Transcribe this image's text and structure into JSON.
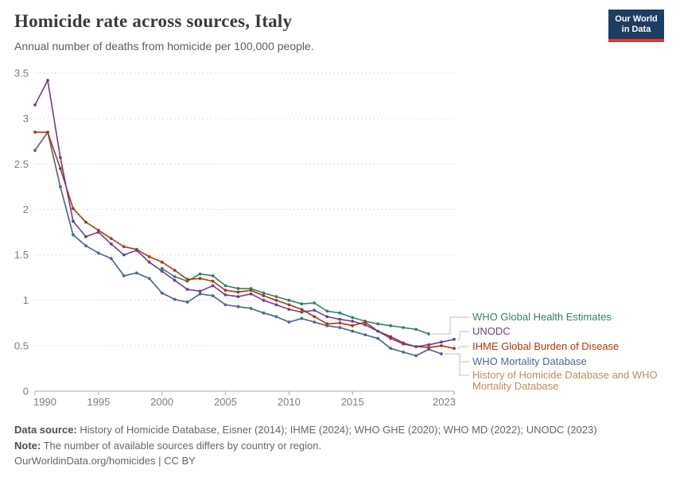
{
  "header": {
    "title": "Homicide rate across sources, Italy",
    "subtitle": "Annual number of deaths from homicide per 100,000 people.",
    "logo": {
      "line1": "Our World",
      "line2": "in Data",
      "bg_color": "#1d3d63",
      "accent_color": "#e8362d"
    }
  },
  "chart_data": {
    "type": "line",
    "title": "Homicide rate across sources, Italy",
    "subtitle": "Annual number of deaths from homicide per 100,000 people.",
    "xlabel": "",
    "ylabel": "",
    "xlim": [
      1990,
      2023
    ],
    "ylim": [
      0,
      3.5
    ],
    "x_ticks": [
      1990,
      1995,
      2000,
      2005,
      2010,
      2015,
      2023
    ],
    "y_ticks": [
      0,
      0.5,
      1,
      1.5,
      2,
      2.5,
      3,
      3.5
    ],
    "grid": "horizontal-dashed",
    "legend_position": "right",
    "series": [
      {
        "name": "WHO Global Health Estimates",
        "color": "#2C8465",
        "start_year": 2000,
        "values": [
          1.35,
          1.26,
          1.21,
          1.29,
          1.27,
          1.16,
          1.13,
          1.13,
          1.08,
          1.04,
          1.0,
          0.96,
          0.97,
          0.88,
          0.86,
          0.81,
          0.77,
          0.74,
          0.72,
          0.7,
          0.68,
          0.63
        ]
      },
      {
        "name": "UNODC",
        "color": "#6D3E91",
        "start_year": 1990,
        "values": [
          3.15,
          3.42,
          2.57,
          1.87,
          1.7,
          1.75,
          1.62,
          1.5,
          1.55,
          1.42,
          1.32,
          1.22,
          1.12,
          1.1,
          1.16,
          1.06,
          1.04,
          1.07,
          1.0,
          0.95,
          0.9,
          0.87,
          0.89,
          0.82,
          0.79,
          0.77,
          0.73,
          0.66,
          0.6,
          0.53,
          0.49,
          0.51,
          0.54,
          0.57
        ]
      },
      {
        "name": "IHME Global Burden of Disease",
        "color": "#B13507",
        "start_year": 1990,
        "values": [
          2.85,
          2.85,
          2.45,
          2.01,
          1.86,
          1.77,
          1.68,
          1.59,
          1.56,
          1.48,
          1.42,
          1.33,
          1.23,
          1.24,
          1.21,
          1.11,
          1.09,
          1.11,
          1.05,
          1.0,
          0.95,
          0.9,
          0.82,
          0.74,
          0.75,
          0.72,
          0.76,
          0.66,
          0.58,
          0.52,
          0.49,
          0.48,
          0.5,
          0.47
        ]
      },
      {
        "name": "WHO Mortality Database",
        "color": "#4C6A9C",
        "start_year": 1990,
        "values": [
          2.65,
          2.85,
          2.25,
          1.72,
          1.6,
          1.52,
          1.46,
          1.27,
          1.3,
          1.24,
          1.08,
          1.01,
          0.98,
          1.07,
          1.05,
          0.95,
          0.93,
          0.91,
          0.86,
          0.82,
          0.76,
          0.8,
          0.76,
          0.72,
          0.7,
          0.66,
          0.62,
          0.58,
          0.47,
          0.43,
          0.39,
          0.46,
          0.41
        ]
      },
      {
        "name": "History of Homicide Database and WHO Mortality Database",
        "color": "#BC8E5A",
        "start_year": 1990,
        "note": "Line overlaps the WHO Mortality Database series",
        "values": [
          2.65,
          2.85,
          2.25,
          1.72,
          1.6,
          1.52,
          1.46,
          1.27,
          1.3,
          1.24,
          1.08,
          1.01,
          0.98,
          1.07,
          1.05,
          0.95,
          0.93,
          0.91,
          0.86,
          0.82,
          0.76,
          0.8,
          0.76,
          0.72,
          0.7,
          0.66,
          0.62,
          0.58,
          0.47,
          0.43,
          0.39,
          0.46,
          0.41
        ]
      }
    ]
  },
  "legend": {
    "items": [
      {
        "label": "WHO Global Health Estimates",
        "color": "#2C8465"
      },
      {
        "label": "UNODC",
        "color": "#6D3E91"
      },
      {
        "label": "IHME Global Burden of Disease",
        "color": "#B13507"
      },
      {
        "label": "WHO Mortality Database",
        "color": "#4C6A9C"
      },
      {
        "label": "History of Homicide Database and WHO Mortality Database",
        "color": "#BC8E5A"
      }
    ]
  },
  "footer": {
    "data_source_label": "Data source:",
    "data_source_text": " History of Homicide Database, Eisner (2014); IHME (2024); WHO GHE (2020); WHO MD (2022); UNODC (2023)",
    "note_label": "Note:",
    "note_text": " The number of available sources differs by country or region.",
    "license_line": "OurWorldinData.org/homicides | CC BY"
  }
}
